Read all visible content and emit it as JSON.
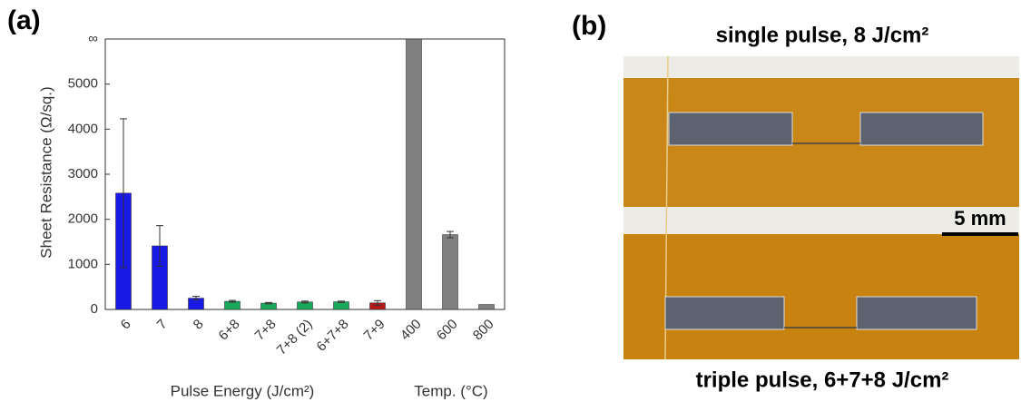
{
  "chart_data": {
    "type": "bar",
    "panel_label": "(a)",
    "y_label": "Sheet Resistance (Ω/sq.)",
    "x_label": "Pulse Energy (J/cm²)",
    "x_label_2": "Temp. (°C)",
    "categories": [
      "6",
      "7",
      "8",
      "6+8",
      "7+8",
      "7+8 (2)",
      "6+7+8",
      "7+9",
      "400",
      "600",
      "800"
    ],
    "values": [
      2580,
      1410,
      250,
      180,
      140,
      165,
      170,
      145,
      6000,
      1660,
      110
    ],
    "errors": [
      1650,
      450,
      40,
      20,
      15,
      20,
      15,
      50,
      null,
      70,
      null
    ],
    "colors": [
      "#1a1ae6",
      "#1a1ae6",
      "#1a1ae6",
      "#1aa85a",
      "#1aa85a",
      "#1aa85a",
      "#1aa85a",
      "#b31b1b",
      "#808080",
      "#808080",
      "#808080"
    ],
    "ylim": [
      0,
      6000
    ],
    "yticks": [
      0,
      1000,
      2000,
      3000,
      4000,
      5000,
      {
        "value": 6000,
        "label": "∞"
      }
    ]
  },
  "photo": {
    "panel_label": "(b)",
    "top_title": "single pulse, 8 J/cm²",
    "bottom_title": "triple pulse, 6+7+8 J/cm²",
    "scale_bar": "5 mm"
  }
}
